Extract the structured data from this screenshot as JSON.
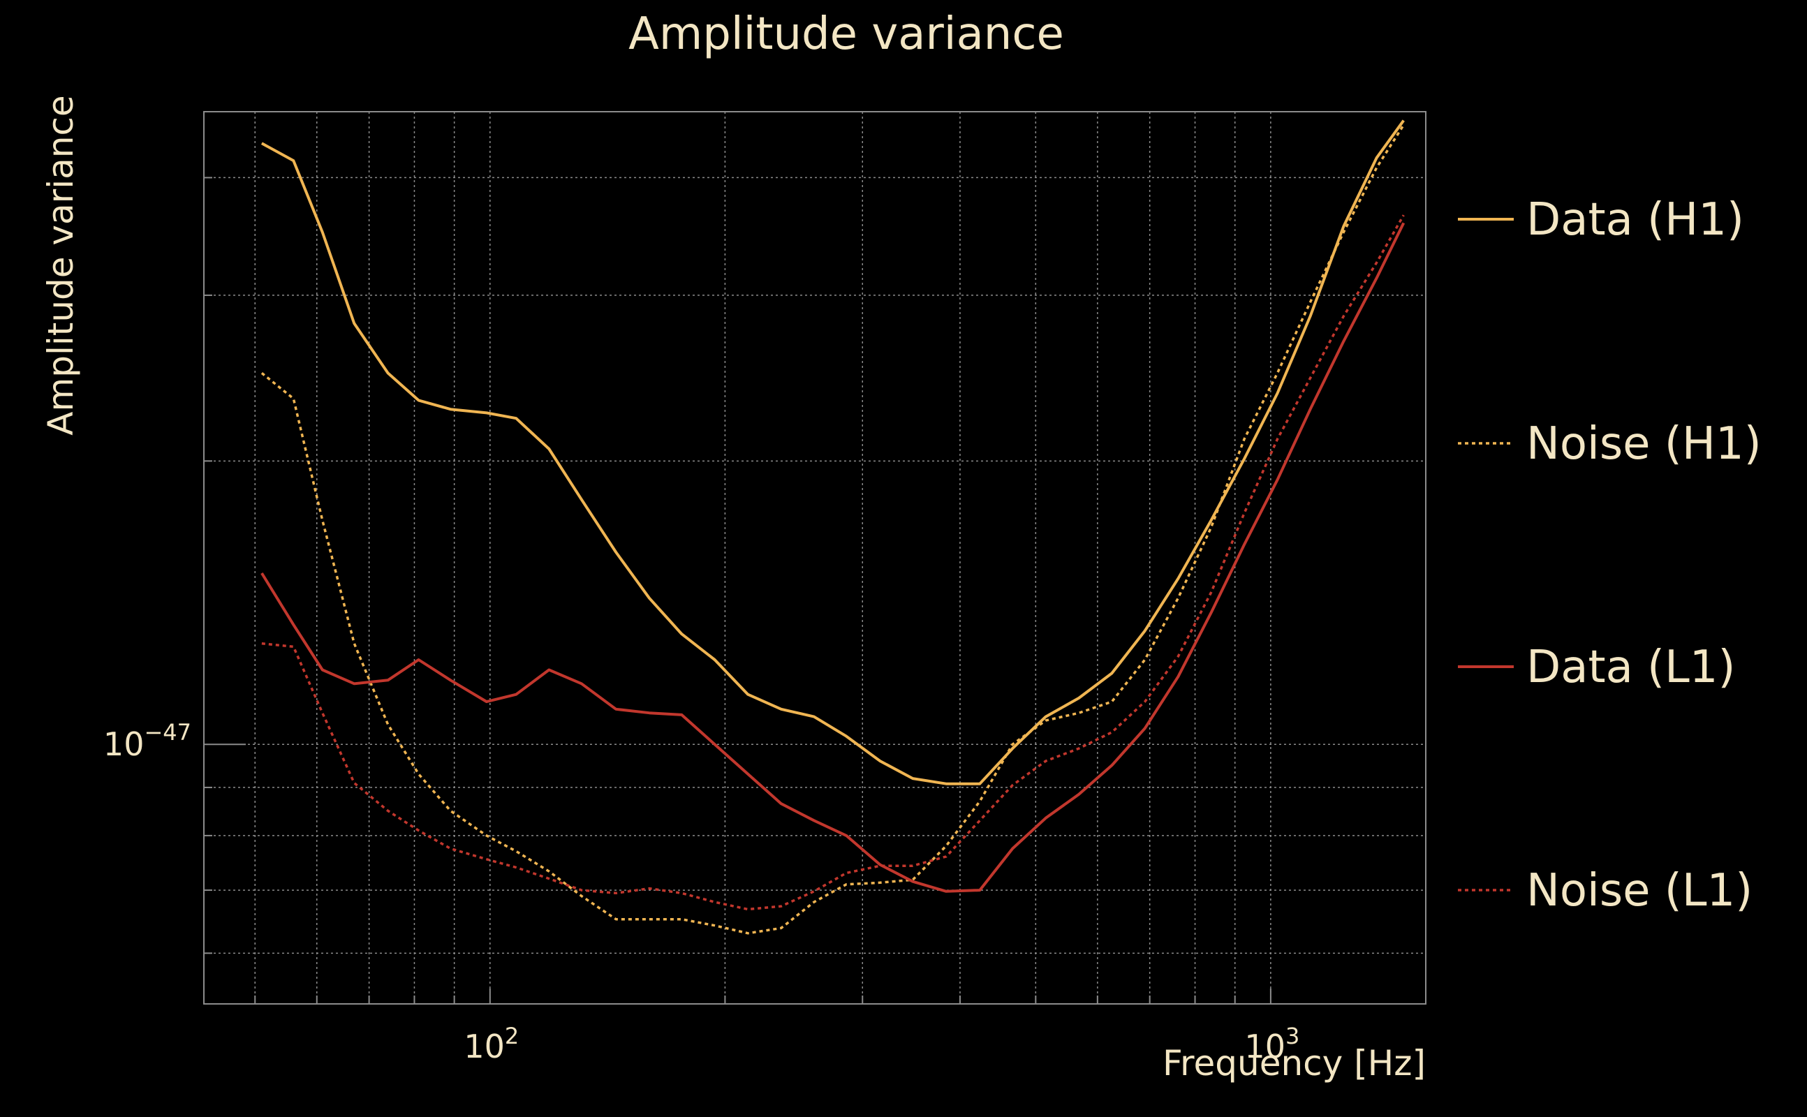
{
  "chart_data": {
    "type": "line",
    "title": "Amplitude variance",
    "xlabel": "Frequency [Hz]",
    "ylabel": "Amplitude variance",
    "xscale": "log",
    "yscale": "log",
    "xlim": [
      43,
      1580
    ],
    "ylim": [
      5.3e-48,
      4.7e-47
    ],
    "grid": true,
    "legend_position": "right",
    "x_tick_labels": [
      {
        "value": 100,
        "base": "10",
        "exp": "2"
      },
      {
        "value": 1000,
        "base": "10",
        "exp": "3"
      }
    ],
    "y_tick_labels": [
      {
        "value": 1e-47,
        "base": "10",
        "exp": "−47"
      }
    ],
    "series": [
      {
        "name": "Data (H1)",
        "color": "#f0b552",
        "style": "solid",
        "points": [
          [
            51,
            43.5
          ],
          [
            56,
            41.7
          ],
          [
            61,
            35.0
          ],
          [
            67,
            28.0
          ],
          [
            74,
            24.8
          ],
          [
            81,
            23.2
          ],
          [
            89,
            22.7
          ],
          [
            99,
            22.5
          ],
          [
            108,
            22.2
          ],
          [
            119,
            20.6
          ],
          [
            131,
            18.2
          ],
          [
            145,
            16.0
          ],
          [
            160,
            14.3
          ],
          [
            176,
            13.1
          ],
          [
            194,
            12.3
          ],
          [
            214,
            11.3
          ],
          [
            236,
            10.9
          ],
          [
            260,
            10.7
          ],
          [
            286,
            10.2
          ],
          [
            316,
            9.6
          ],
          [
            348,
            9.2
          ],
          [
            384,
            9.08
          ],
          [
            424,
            9.08
          ],
          [
            467,
            9.9
          ],
          [
            515,
            10.7
          ],
          [
            568,
            11.2
          ],
          [
            626,
            11.9
          ],
          [
            690,
            13.2
          ],
          [
            761,
            15.0
          ],
          [
            839,
            17.3
          ],
          [
            925,
            20.1
          ],
          [
            1020,
            23.6
          ],
          [
            1124,
            28.5
          ],
          [
            1240,
            35.5
          ],
          [
            1367,
            42.0
          ],
          [
            1480,
            46.0
          ]
        ]
      },
      {
        "name": "Noise (H1)",
        "color": "#f0b552",
        "style": "dotted",
        "points": [
          [
            51,
            24.8
          ],
          [
            56,
            23.3
          ],
          [
            61,
            17.3
          ],
          [
            67,
            12.8
          ],
          [
            74,
            10.5
          ],
          [
            81,
            9.3
          ],
          [
            89,
            8.5
          ],
          [
            99,
            8.0
          ],
          [
            108,
            7.7
          ],
          [
            119,
            7.33
          ],
          [
            131,
            6.9
          ],
          [
            145,
            6.52
          ],
          [
            160,
            6.52
          ],
          [
            176,
            6.52
          ],
          [
            194,
            6.42
          ],
          [
            214,
            6.3
          ],
          [
            236,
            6.38
          ],
          [
            260,
            6.8
          ],
          [
            286,
            7.1
          ],
          [
            316,
            7.13
          ],
          [
            348,
            7.18
          ],
          [
            384,
            7.8
          ],
          [
            424,
            8.7
          ],
          [
            467,
            10.0
          ],
          [
            515,
            10.6
          ],
          [
            568,
            10.8
          ],
          [
            626,
            11.1
          ],
          [
            690,
            12.3
          ],
          [
            761,
            14.3
          ],
          [
            839,
            17.0
          ],
          [
            925,
            21.1
          ],
          [
            1020,
            24.8
          ],
          [
            1124,
            29.5
          ],
          [
            1240,
            35.0
          ],
          [
            1367,
            41.0
          ],
          [
            1480,
            45.5
          ]
        ]
      },
      {
        "name": "Data (L1)",
        "color": "#c2372d",
        "style": "solid",
        "points": [
          [
            51,
            15.2
          ],
          [
            56,
            13.4
          ],
          [
            61,
            12.0
          ],
          [
            67,
            11.6
          ],
          [
            74,
            11.7
          ],
          [
            81,
            12.3
          ],
          [
            89,
            11.7
          ],
          [
            99,
            11.1
          ],
          [
            108,
            11.3
          ],
          [
            119,
            12.0
          ],
          [
            131,
            11.6
          ],
          [
            145,
            10.9
          ],
          [
            160,
            10.8
          ],
          [
            176,
            10.75
          ],
          [
            194,
            10.0
          ],
          [
            214,
            9.3
          ],
          [
            236,
            8.65
          ],
          [
            260,
            8.3
          ],
          [
            286,
            8.0
          ],
          [
            316,
            7.45
          ],
          [
            348,
            7.15
          ],
          [
            384,
            6.98
          ],
          [
            424,
            7.0
          ],
          [
            467,
            7.75
          ],
          [
            515,
            8.35
          ],
          [
            568,
            8.85
          ],
          [
            626,
            9.5
          ],
          [
            690,
            10.4
          ],
          [
            761,
            11.8
          ],
          [
            839,
            13.8
          ],
          [
            925,
            16.3
          ],
          [
            1020,
            19.1
          ],
          [
            1124,
            22.7
          ],
          [
            1240,
            26.8
          ],
          [
            1367,
            31.3
          ],
          [
            1480,
            35.8
          ]
        ]
      },
      {
        "name": "Noise (L1)",
        "color": "#c2372d",
        "style": "dotted",
        "points": [
          [
            51,
            12.8
          ],
          [
            56,
            12.7
          ],
          [
            61,
            10.8
          ],
          [
            67,
            9.1
          ],
          [
            74,
            8.5
          ],
          [
            81,
            8.1
          ],
          [
            89,
            7.75
          ],
          [
            99,
            7.55
          ],
          [
            108,
            7.4
          ],
          [
            119,
            7.2
          ],
          [
            131,
            7.0
          ],
          [
            145,
            6.95
          ],
          [
            160,
            7.03
          ],
          [
            176,
            6.95
          ],
          [
            194,
            6.8
          ],
          [
            214,
            6.68
          ],
          [
            236,
            6.73
          ],
          [
            260,
            6.98
          ],
          [
            286,
            7.3
          ],
          [
            316,
            7.43
          ],
          [
            348,
            7.43
          ],
          [
            384,
            7.6
          ],
          [
            424,
            8.3
          ],
          [
            467,
            9.05
          ],
          [
            515,
            9.6
          ],
          [
            568,
            9.9
          ],
          [
            626,
            10.3
          ],
          [
            690,
            11.1
          ],
          [
            761,
            12.4
          ],
          [
            839,
            14.5
          ],
          [
            925,
            17.6
          ],
          [
            1020,
            21.1
          ],
          [
            1124,
            24.5
          ],
          [
            1240,
            28.5
          ],
          [
            1367,
            32.5
          ],
          [
            1480,
            36.5
          ]
        ]
      }
    ],
    "value_unit_note": "y values scaled by 1e-48"
  }
}
